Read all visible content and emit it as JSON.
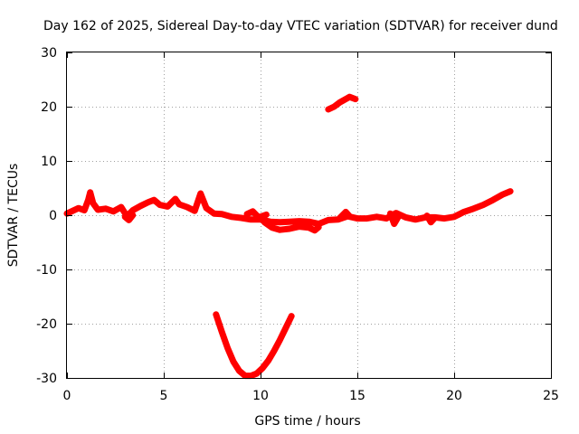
{
  "chart_data": {
    "type": "line",
    "title": "Day 162 of 2025, Sidereal Day-to-day VTEC variation (SDTVAR) for receiver dund",
    "xlabel": "GPS time / hours",
    "ylabel": "SDTVAR / TECUs",
    "xlim": [
      0,
      25
    ],
    "ylim": [
      -30,
      30
    ],
    "xticks": [
      0,
      5,
      10,
      15,
      20,
      25
    ],
    "yticks": [
      -30,
      -20,
      -10,
      0,
      10,
      20,
      30
    ],
    "grid": true,
    "color": "#ff0000",
    "series": [
      {
        "name": "main-band",
        "points": [
          [
            0,
            0.3
          ],
          [
            0.3,
            0.8
          ],
          [
            0.6,
            1.3
          ],
          [
            0.9,
            0.9
          ],
          [
            1.1,
            2.8
          ],
          [
            1.2,
            4.2
          ],
          [
            1.35,
            2.2
          ],
          [
            1.6,
            1
          ],
          [
            2,
            1.2
          ],
          [
            2.4,
            0.7
          ],
          [
            2.8,
            1.5
          ],
          [
            3.1,
            -0.2
          ],
          [
            3.4,
            0.9
          ],
          [
            3.8,
            1.7
          ],
          [
            4.2,
            2.4
          ],
          [
            4.5,
            2.8
          ],
          [
            4.8,
            1.9
          ],
          [
            5.2,
            1.6
          ],
          [
            5.6,
            3.0
          ],
          [
            5.8,
            2.0
          ],
          [
            6.2,
            1.5
          ],
          [
            6.6,
            0.8
          ],
          [
            6.9,
            4.0
          ],
          [
            7.2,
            1.3
          ],
          [
            7.6,
            0.3
          ],
          [
            8,
            0.2
          ],
          [
            8.5,
            -0.3
          ],
          [
            9,
            -0.5
          ],
          [
            9.5,
            -0.8
          ],
          [
            10,
            -0.8
          ],
          [
            10.5,
            -1.2
          ],
          [
            11,
            -1.3
          ],
          [
            11.5,
            -1.2
          ],
          [
            12,
            -1.1
          ],
          [
            12.5,
            -1.2
          ],
          [
            13,
            -1.6
          ],
          [
            13.5,
            -0.9
          ],
          [
            14,
            -0.8
          ],
          [
            14.5,
            -0.2
          ],
          [
            15,
            -0.6
          ],
          [
            15.5,
            -0.6
          ],
          [
            16,
            -0.3
          ],
          [
            16.5,
            -0.6
          ],
          [
            17,
            0.4
          ],
          [
            17.5,
            -0.4
          ],
          [
            18,
            -0.8
          ],
          [
            18.5,
            -0.4
          ],
          [
            19,
            -0.4
          ],
          [
            19.5,
            -0.6
          ],
          [
            20,
            -0.3
          ],
          [
            20.5,
            0.6
          ],
          [
            21,
            1.2
          ],
          [
            21.5,
            1.9
          ],
          [
            22,
            2.8
          ],
          [
            22.5,
            3.8
          ],
          [
            22.9,
            4.4
          ]
        ]
      },
      {
        "name": "dip-branch",
        "points": [
          [
            10.2,
            -1.3
          ],
          [
            10.6,
            -2.3
          ],
          [
            11,
            -2.7
          ],
          [
            11.5,
            -2.5
          ],
          [
            12,
            -2.1
          ],
          [
            12.5,
            -2.3
          ],
          [
            12.8,
            -2.8
          ],
          [
            13,
            -2.2
          ]
        ]
      },
      {
        "name": "spike-1",
        "points": [
          [
            3.0,
            -0.3
          ],
          [
            3.2,
            -0.9
          ],
          [
            3.4,
            0.0
          ]
        ]
      },
      {
        "name": "spike-2",
        "points": [
          [
            9.3,
            0.2
          ],
          [
            9.6,
            0.7
          ],
          [
            9.9,
            -0.4
          ],
          [
            10.3,
            0.1
          ]
        ]
      },
      {
        "name": "spike-3",
        "points": [
          [
            14.1,
            -0.5
          ],
          [
            14.4,
            0.6
          ],
          [
            14.6,
            -0.2
          ]
        ]
      },
      {
        "name": "spike-4",
        "points": [
          [
            16.7,
            0.3
          ],
          [
            16.9,
            -1.6
          ],
          [
            17.1,
            -0.4
          ]
        ]
      },
      {
        "name": "spike-5",
        "points": [
          [
            18.6,
            -0.1
          ],
          [
            18.8,
            -1.3
          ],
          [
            19,
            -0.5
          ]
        ]
      },
      {
        "name": "high-arc",
        "points": [
          [
            13.5,
            19.5
          ],
          [
            13.8,
            20.0
          ],
          [
            14.1,
            20.8
          ],
          [
            14.4,
            21.4
          ],
          [
            14.6,
            21.8
          ],
          [
            14.9,
            21.4
          ]
        ]
      },
      {
        "name": "low-v-curve",
        "points": [
          [
            7.7,
            -18.3
          ],
          [
            8.0,
            -21.5
          ],
          [
            8.3,
            -24.5
          ],
          [
            8.6,
            -27.0
          ],
          [
            8.9,
            -28.7
          ],
          [
            9.2,
            -29.6
          ],
          [
            9.5,
            -29.6
          ],
          [
            9.8,
            -29.2
          ],
          [
            10.1,
            -28.2
          ],
          [
            10.4,
            -26.8
          ],
          [
            10.7,
            -25.0
          ],
          [
            11.0,
            -23.0
          ],
          [
            11.3,
            -20.8
          ],
          [
            11.6,
            -18.6
          ]
        ]
      }
    ]
  }
}
